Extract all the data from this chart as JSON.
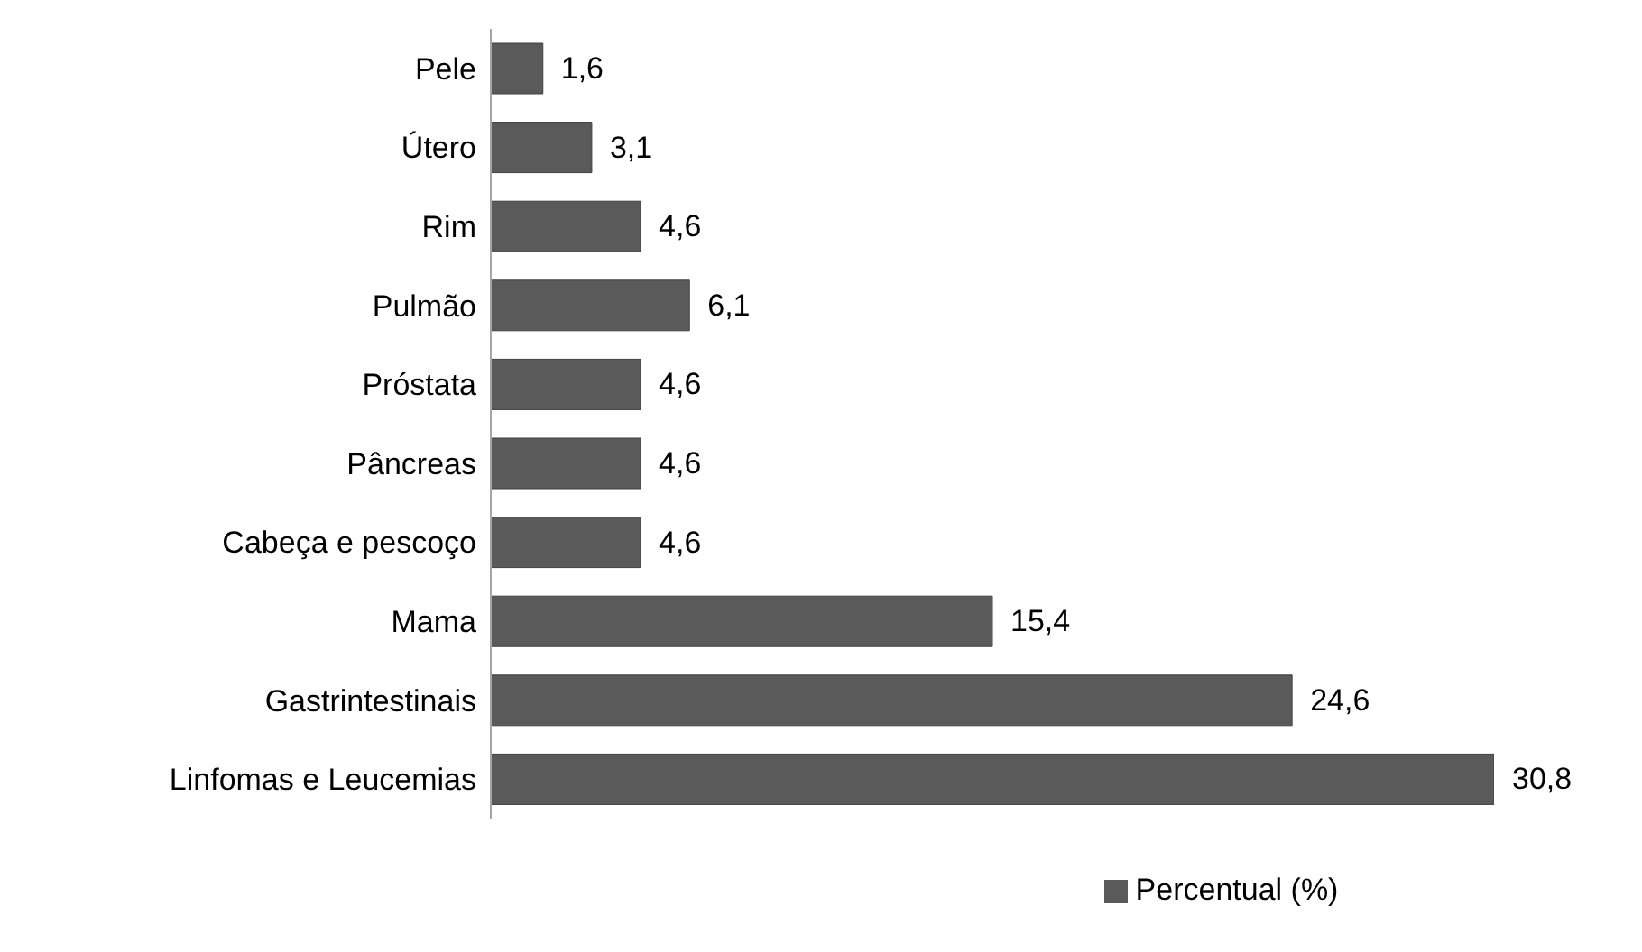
{
  "chart_data": {
    "type": "bar",
    "orientation": "horizontal",
    "categories": [
      "Pele",
      "Útero",
      "Rim",
      "Pulmão",
      "Próstata",
      "Pâncreas",
      "Cabeça e pescoço",
      "Mama",
      "Gastrintestinais",
      "Linfomas e Leucemias"
    ],
    "series": [
      {
        "name": "Percentual (%)",
        "color": "#5a5a5a",
        "values": [
          1.6,
          3.1,
          4.6,
          6.1,
          4.6,
          4.6,
          4.6,
          15.4,
          24.6,
          30.8
        ],
        "value_labels": [
          "1,6",
          "3,1",
          "4,6",
          "6,1",
          "4,6",
          "4,6",
          "4,6",
          "15,4",
          "24,6",
          "30,8"
        ]
      }
    ],
    "legend": "bottom",
    "tick_labels": "y"
  }
}
